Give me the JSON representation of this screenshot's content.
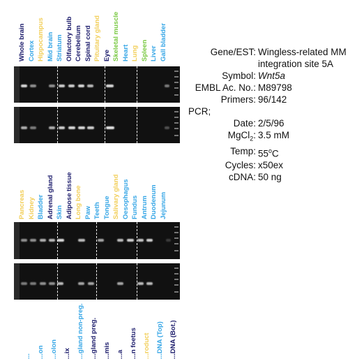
{
  "set1": {
    "labels": [
      {
        "text": "Whole brain",
        "color": "#1b1b6b"
      },
      {
        "text": "Cortex",
        "color": "#36a6e6"
      },
      {
        "text": "Hippocampus",
        "color": "#f2cf5a"
      },
      {
        "text": "Mid brain",
        "color": "#36a6e6"
      },
      {
        "text": "Striatum",
        "color": "#36a6e6"
      },
      {
        "text": "Olfactory bulb",
        "color": "#1b1b6b"
      },
      {
        "text": "Cerebellum",
        "color": "#1b1b6b"
      },
      {
        "text": "Spinal cord",
        "color": "#1b1b6b"
      },
      {
        "text": "Pituitary gland",
        "color": "#f2cf5a"
      },
      {
        "text": "Eye",
        "color": "#1b1b6b"
      },
      {
        "text": "Skeletal muscle",
        "color": "#7ac943"
      },
      {
        "text": "Heart",
        "color": "#36a6e6"
      },
      {
        "text": "Lung",
        "color": "#f2cf5a"
      },
      {
        "text": "Spleen",
        "color": "#7ac943"
      },
      {
        "text": "Liver",
        "color": "#36a6e6"
      },
      {
        "text": "Gall bladder",
        "color": "#36a6e6"
      }
    ]
  },
  "set2": {
    "labels": [
      {
        "text": "Pancreas",
        "color": "#f2cf5a"
      },
      {
        "text": "Kidney",
        "color": "#f2cf5a"
      },
      {
        "text": "Bladder",
        "color": "#36a6e6"
      },
      {
        "text": "Adrenal gland",
        "color": "#1b1b6b"
      },
      {
        "text": "Skin",
        "color": "#36a6e6"
      },
      {
        "text": "Adipose tissue",
        "color": "#1b1b6b"
      },
      {
        "text": "Long bone",
        "color": "#f2cf5a"
      },
      {
        "text": "Paw",
        "color": "#36a6e6"
      },
      {
        "text": "Teeth",
        "color": "#36a6e6"
      },
      {
        "text": "Tongue",
        "color": "#36a6e6"
      },
      {
        "text": "Salivary gland",
        "color": "#f2cf5a"
      },
      {
        "text": "Oesophagus",
        "color": "#36a6e6"
      },
      {
        "text": "Fundus",
        "color": "#36a6e6"
      },
      {
        "text": "Antrum",
        "color": "#36a6e6"
      },
      {
        "text": "Duodenum",
        "color": "#36a6e6"
      },
      {
        "text": "Jejunum",
        "color": "#36a6e6"
      }
    ]
  },
  "set3": {
    "labels": [
      {
        "text": "...",
        "color": "#36a6e6"
      },
      {
        "text": "...on",
        "color": "#36a6e6"
      },
      {
        "text": "...olon",
        "color": "#36a6e6"
      },
      {
        "text": "...ix",
        "color": "#1b1b6b"
      },
      {
        "text": "...gland non-preg.",
        "color": "#36a6e6"
      },
      {
        "text": "...gland preg.",
        "color": "#1b1b6b"
      },
      {
        "text": "...mis",
        "color": "#1b1b6b"
      },
      {
        "text": "...a",
        "color": "#1b1b6b"
      },
      {
        "text": "...n foetus",
        "color": "#1b1b6b"
      },
      {
        "text": "...roduct",
        "color": "#f2cf5a"
      },
      {
        "text": "...DNA (Top)",
        "color": "#36a6e6"
      },
      {
        "text": "...DNA (Bot.)",
        "color": "#1b1b6b"
      }
    ]
  },
  "info": {
    "gene_label": "Gene/EST:",
    "gene_line1": "Wingless-related MM",
    "gene_line2": "integration site 5A",
    "symbol_label": "Symbol:",
    "symbol_value": "Wnt5a",
    "embl_label": "EMBL Ac. No.:",
    "embl_value": "M89798",
    "primers_label": "Primers:",
    "primers_value": "96/142",
    "pcr_label": "PCR;",
    "date_label": "Date:",
    "date_value": "2/5/96",
    "mgcl2_label": "MgCl",
    "mgcl2_sub": "2",
    "mgcl2_colon": ":",
    "mgcl2_value": "3.5 mM",
    "temp_label": "Temp:",
    "temp_value": "55",
    "temp_unit_sup": "o",
    "temp_unit": "C",
    "cycles_label": "Cycles:",
    "cycles_value": "x50ex",
    "cdna_label": "cDNA:",
    "cdna_value": "50 ng"
  }
}
